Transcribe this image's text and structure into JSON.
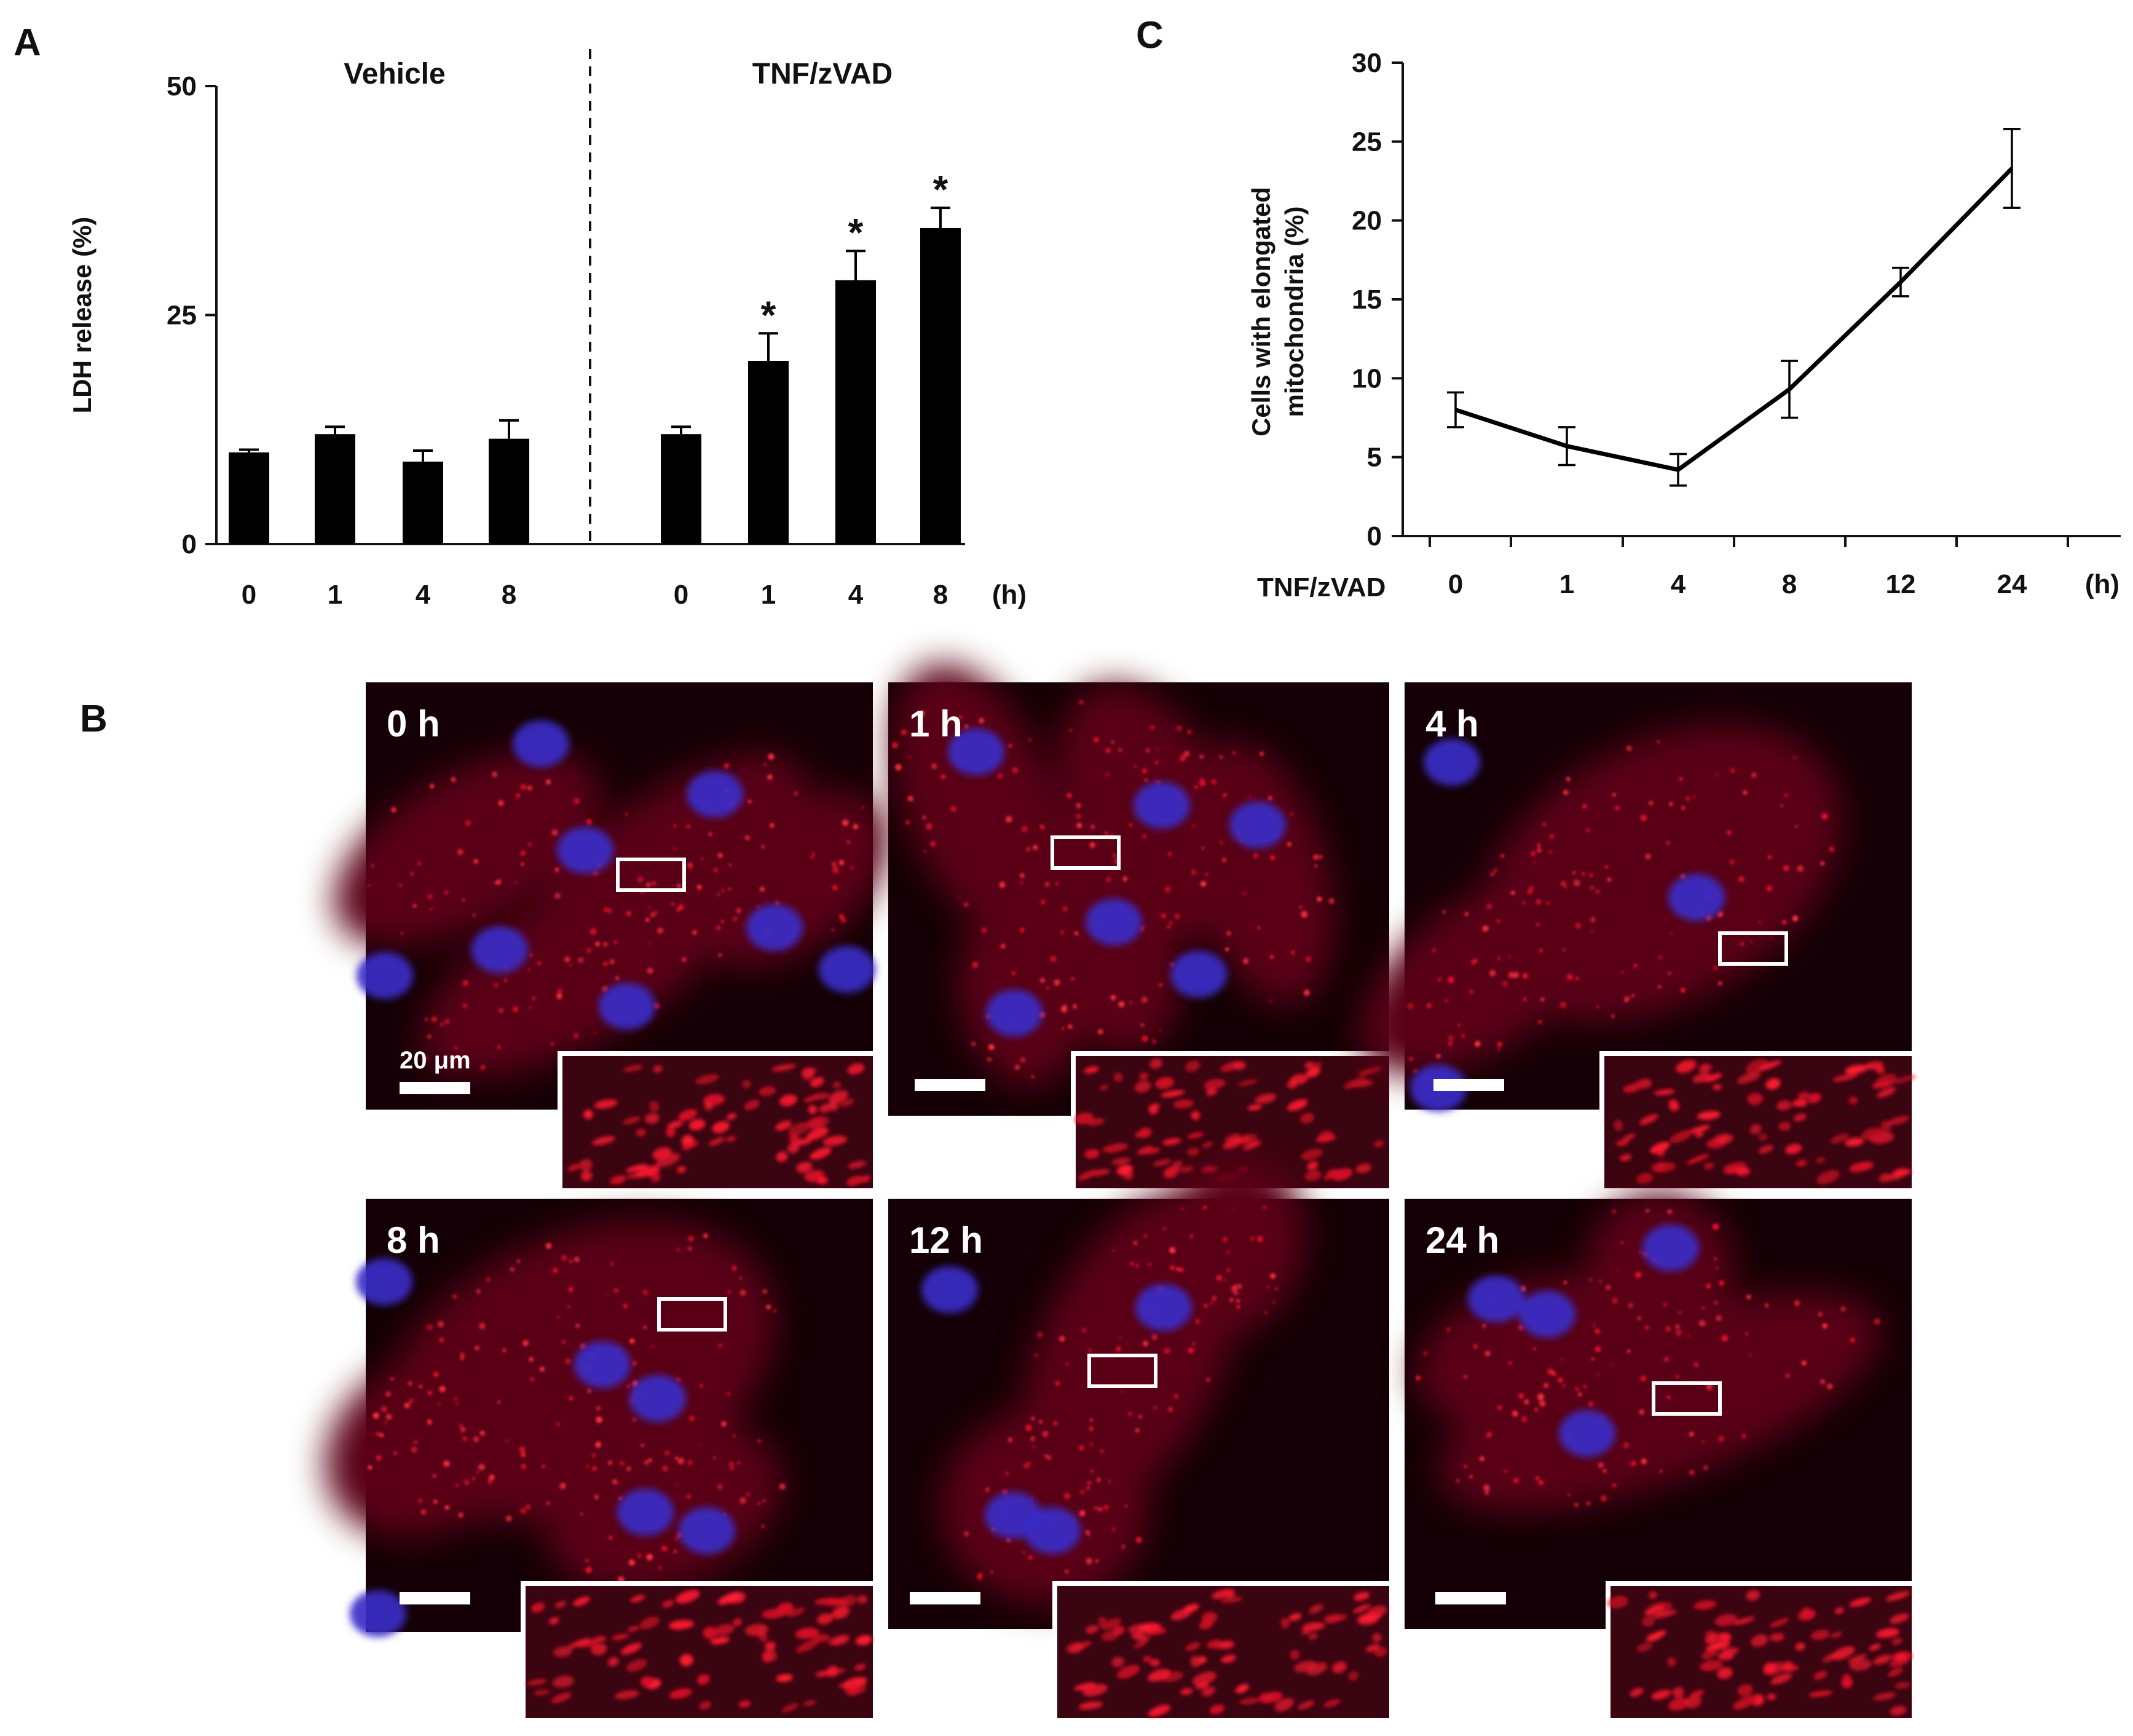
{
  "panels": {
    "a": "A",
    "b": "B",
    "c": "C"
  },
  "chart_data": [
    {
      "type": "bar",
      "panel": "A",
      "ylabel": "LDH release (%)",
      "ylim": [
        0,
        50
      ],
      "yticks": [
        0,
        25,
        50
      ],
      "time_unit": "(h)",
      "groups": [
        {
          "label": "Vehicle",
          "categories": [
            "0",
            "1",
            "4",
            "8"
          ],
          "values": [
            10,
            12,
            9,
            11.5
          ],
          "errors": [
            0.3,
            0.8,
            1.2,
            2.0
          ],
          "significant": [
            false,
            false,
            false,
            false
          ]
        },
        {
          "label": "TNF/zVAD",
          "categories": [
            "0",
            "1",
            "4",
            "8"
          ],
          "values": [
            12,
            20,
            28.8,
            34.5
          ],
          "errors": [
            0.8,
            3.0,
            3.2,
            2.2
          ],
          "significant": [
            false,
            true,
            true,
            true
          ]
        }
      ],
      "significance_mark": "*",
      "separator": "dashed"
    },
    {
      "type": "line",
      "panel": "C",
      "ylabel": "Cells with elongated mitochondria (%)",
      "ylabel_lines": [
        "Cells with elongated",
        "mitochondria (%)"
      ],
      "xlabel": "TNF/zVAD",
      "time_unit": "(h)",
      "ylim": [
        0,
        30
      ],
      "yticks": [
        0,
        5,
        10,
        15,
        20,
        25,
        30
      ],
      "categories": [
        "0",
        "1",
        "4",
        "8",
        "12",
        "24"
      ],
      "values": [
        8,
        5.7,
        4.2,
        9.3,
        16.1,
        23.3
      ],
      "errors": [
        1.1,
        1.2,
        1.0,
        1.8,
        0.9,
        2.5
      ]
    }
  ],
  "micrographs": {
    "scale_bar": "20 μm",
    "panels": [
      {
        "label": "0 h"
      },
      {
        "label": "1 h"
      },
      {
        "label": "4 h"
      },
      {
        "label": "8 h"
      },
      {
        "label": "12 h"
      },
      {
        "label": "24 h"
      }
    ]
  }
}
